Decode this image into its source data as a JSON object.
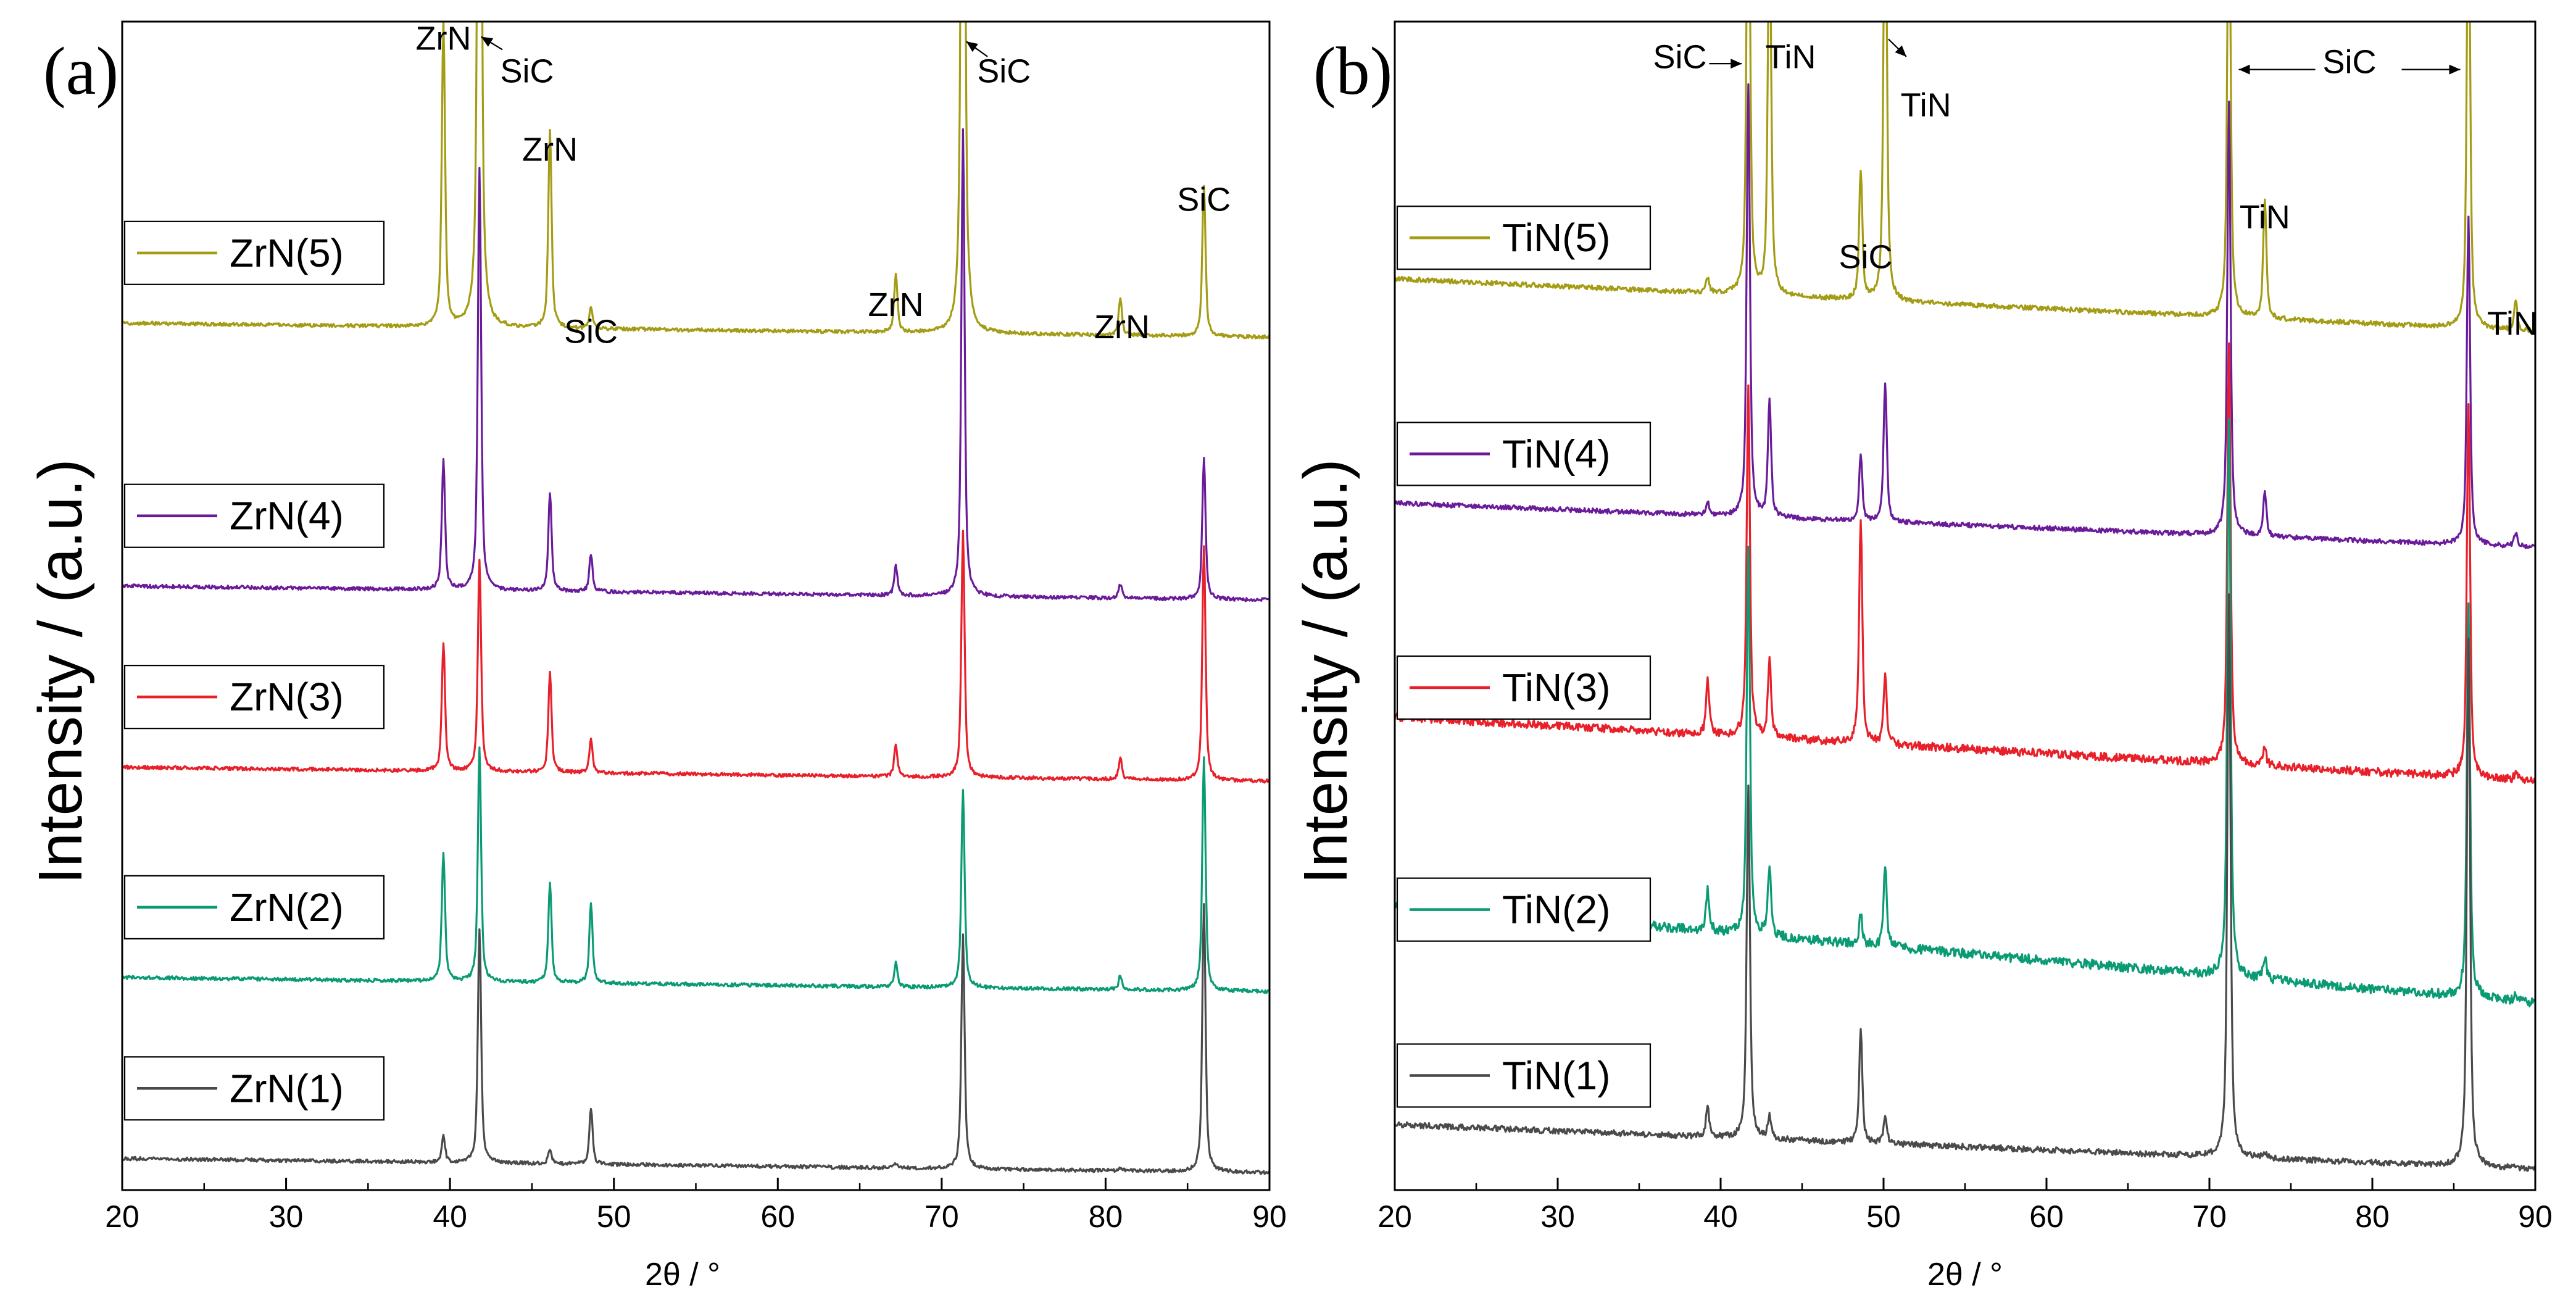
{
  "figure": {
    "panels": [
      {
        "key": "a",
        "tag": "(a)",
        "ylabel": "Intensity / (a.u.)",
        "xlabel": "2θ / °"
      },
      {
        "key": "b",
        "tag": "(b)",
        "ylabel": "Intensity / (a.u.)",
        "xlabel": "2θ / °"
      }
    ]
  },
  "chart_data": [
    {
      "type": "line",
      "title": "(a)",
      "xlabel": "2θ / °",
      "ylabel": "Intensity / (a.u.)",
      "xlim": [
        20,
        90
      ],
      "xticks": [
        20,
        30,
        40,
        50,
        60,
        70,
        80,
        90
      ],
      "ylim": [
        0,
        100
      ],
      "grid": false,
      "legend": "one legend box per trace, left",
      "series": [
        {
          "name": "ZrN(5)",
          "color": "#a39c14",
          "baseline": 73,
          "slope": 1.2,
          "noise": 0.15,
          "peaks": [
            [
              39.6,
              26
            ],
            [
              41.8,
              90
            ],
            [
              46.1,
              17
            ],
            [
              48.6,
              1.8
            ],
            [
              67.2,
              5
            ],
            [
              71.3,
              90
            ],
            [
              80.9,
              3.2
            ],
            [
              86.0,
              13
            ]
          ]
        },
        {
          "name": "ZrN(4)",
          "color": "#6a1b9a",
          "baseline": 50.5,
          "slope": 1.2,
          "noise": 0.15,
          "peaks": [
            [
              39.6,
              11
            ],
            [
              41.8,
              36
            ],
            [
              46.1,
              8.5
            ],
            [
              48.6,
              3.2
            ],
            [
              67.2,
              2.5
            ],
            [
              71.3,
              40
            ],
            [
              80.9,
              1.2
            ],
            [
              86.0,
              12
            ]
          ]
        },
        {
          "name": "ZrN(3)",
          "color": "#e8202a",
          "baseline": 35,
          "slope": 1.2,
          "noise": 0.15,
          "peaks": [
            [
              39.6,
              11
            ],
            [
              41.8,
              18
            ],
            [
              46.1,
              8.5
            ],
            [
              48.6,
              2.8
            ],
            [
              67.2,
              2.8
            ],
            [
              71.3,
              21
            ],
            [
              80.9,
              1.8
            ],
            [
              86.0,
              20
            ]
          ]
        },
        {
          "name": "ZrN(2)",
          "color": "#0a9b74",
          "baseline": 17,
          "slope": 1.2,
          "noise": 0.15,
          "peaks": [
            [
              39.6,
              11
            ],
            [
              41.8,
              20
            ],
            [
              46.1,
              8.5
            ],
            [
              48.6,
              6.8
            ],
            [
              67.2,
              2.1
            ],
            [
              71.3,
              17
            ],
            [
              80.9,
              1.2
            ],
            [
              86.0,
              20
            ]
          ]
        },
        {
          "name": "ZrN(1)",
          "color": "#4a4a4a",
          "baseline": 1.5,
          "slope": 1.2,
          "noise": 0.15,
          "peaks": [
            [
              39.6,
              2.3
            ],
            [
              41.8,
              20
            ],
            [
              46.1,
              1.2
            ],
            [
              48.6,
              4.8
            ],
            [
              67.2,
              0.4
            ],
            [
              71.3,
              20
            ],
            [
              80.9,
              0.3
            ],
            [
              86.0,
              23
            ]
          ]
        }
      ],
      "annotations": [
        {
          "text": "ZrN",
          "x": 39.6,
          "y": 97.6
        },
        {
          "text": "SiC",
          "x": 44.7,
          "y": 94.8,
          "arrow": {
            "from": [
              43.2,
              97.6
            ],
            "to": [
              41.9,
              98.7
            ]
          }
        },
        {
          "text": "ZrN",
          "x": 46.1,
          "y": 88.1
        },
        {
          "text": "SiC",
          "x": 48.6,
          "y": 72.5
        },
        {
          "text": "ZrN",
          "x": 67.2,
          "y": 74.8
        },
        {
          "text": "SiC",
          "x": 73.8,
          "y": 94.8,
          "arrow": {
            "from": [
              72.8,
              97.0
            ],
            "to": [
              71.5,
              98.3
            ]
          }
        },
        {
          "text": "ZrN",
          "x": 81.0,
          "y": 72.9
        },
        {
          "text": "SiC",
          "x": 86.0,
          "y": 83.8
        }
      ]
    },
    {
      "type": "line",
      "title": "(b)",
      "xlabel": "2θ / °",
      "ylabel": "Intensity / (a.u.)",
      "xlim": [
        20,
        90
      ],
      "xticks": [
        20,
        30,
        40,
        50,
        60,
        70,
        80,
        90
      ],
      "ylim": [
        0,
        100
      ],
      "grid": false,
      "legend": "one legend box per trace, left",
      "series": [
        {
          "name": "TiN(5)",
          "color": "#a39c14",
          "baseline": 73.5,
          "slope": 4.5,
          "noise": 0.2,
          "peaks": [
            [
              39.2,
              1.2
            ],
            [
              41.7,
              45
            ],
            [
              43.0,
              34
            ],
            [
              48.6,
              11
            ],
            [
              50.1,
              40
            ],
            [
              71.2,
              40
            ],
            [
              73.4,
              10
            ],
            [
              85.9,
              40
            ],
            [
              88.8,
              2.5
            ]
          ]
        },
        {
          "name": "TiN(4)",
          "color": "#6a1b9a",
          "baseline": 55,
          "slope": 3.8,
          "noise": 0.2,
          "peaks": [
            [
              39.2,
              1.2
            ],
            [
              41.7,
              37
            ],
            [
              43.0,
              10
            ],
            [
              48.6,
              5.5
            ],
            [
              50.1,
              12
            ],
            [
              71.2,
              37
            ],
            [
              73.4,
              3.8
            ],
            [
              85.9,
              28
            ],
            [
              88.8,
              1.2
            ]
          ]
        },
        {
          "name": "TiN(3)",
          "color": "#e8202a",
          "baseline": 35,
          "slope": 5.5,
          "noise": 0.35,
          "peaks": [
            [
              39.2,
              4.5
            ],
            [
              41.7,
              30
            ],
            [
              43.0,
              6.5
            ],
            [
              48.6,
              19
            ],
            [
              50.1,
              5.8
            ],
            [
              71.2,
              36
            ],
            [
              73.4,
              1.5
            ],
            [
              85.9,
              32
            ],
            [
              88.8,
              0.5
            ]
          ]
        },
        {
          "name": "TiN(2)",
          "color": "#0a9b74",
          "baseline": 16,
          "slope": 8.5,
          "noise": 0.4,
          "peaks": [
            [
              39.2,
              3.5
            ],
            [
              41.7,
              33
            ],
            [
              43.0,
              6
            ],
            [
              48.6,
              2.5
            ],
            [
              50.1,
              6.8
            ],
            [
              71.2,
              48
            ],
            [
              73.4,
              1.8
            ],
            [
              85.9,
              34
            ],
            [
              88.8,
              0.5
            ]
          ]
        },
        {
          "name": "TiN(1)",
          "color": "#4a4a4a",
          "baseline": 1.8,
          "slope": 3.8,
          "noise": 0.25,
          "peaks": [
            [
              39.2,
              2.5
            ],
            [
              41.7,
              30
            ],
            [
              43.0,
              2
            ],
            [
              48.6,
              9.5
            ],
            [
              50.1,
              2.5
            ],
            [
              71.2,
              48
            ],
            [
              73.4,
              0.5
            ],
            [
              85.9,
              45
            ],
            [
              88.8,
              0.2
            ]
          ]
        }
      ],
      "annotations": [
        {
          "text": "SiC",
          "x": 37.5,
          "y": 96.0,
          "arrow": {
            "from": [
              39.3,
              96.4
            ],
            "to": [
              41.3,
              96.4
            ]
          }
        },
        {
          "text": "TiN",
          "x": 44.3,
          "y": 96.0
        },
        {
          "text": "TiN",
          "x": 52.6,
          "y": 91.9,
          "arrow": {
            "from": [
              50.3,
              98.5
            ],
            "to": [
              51.4,
              97.0
            ]
          }
        },
        {
          "text": "SiC",
          "x": 48.9,
          "y": 78.9
        },
        {
          "text": "SiC",
          "x": 78.6,
          "y": 95.6,
          "arrow": {
            "from": [
              76.5,
              95.9
            ],
            "to": [
              71.8,
              95.9
            ]
          },
          "arrow2": {
            "from": [
              81.8,
              95.9
            ],
            "to": [
              85.4,
              95.9
            ]
          }
        },
        {
          "text": "TiN",
          "x": 73.4,
          "y": 82.3
        },
        {
          "text": "TiN",
          "x": 88.6,
          "y": 73.2
        }
      ]
    }
  ]
}
